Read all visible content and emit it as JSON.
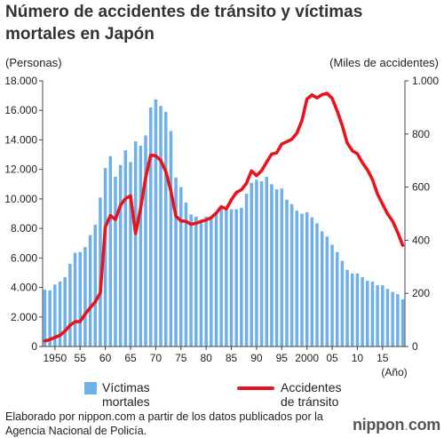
{
  "page": {
    "title": "Número de accidentes de tránsito y víctimas mortales en Japón",
    "unit_left": "(Personas)",
    "unit_right": "(Miles de accidentes)",
    "source": "Elaborado por nippon.com a partir de los datos publicados por la Agencia Nacional de Policía.",
    "brand_name": "nippon",
    "brand_dot": ".",
    "brand_domain": "com"
  },
  "colors": {
    "bars": "#6fb0e8",
    "line": "#e8141c",
    "axis": "#444444",
    "grid": "#cccccc"
  },
  "chart_data": {
    "type": "bar",
    "x": [
      1948,
      1949,
      1950,
      1951,
      1952,
      1953,
      1954,
      1955,
      1956,
      1957,
      1958,
      1959,
      1960,
      1961,
      1962,
      1963,
      1964,
      1965,
      1966,
      1967,
      1968,
      1969,
      1970,
      1971,
      1972,
      1973,
      1974,
      1975,
      1976,
      1977,
      1978,
      1979,
      1980,
      1981,
      1982,
      1983,
      1984,
      1985,
      1986,
      1987,
      1988,
      1989,
      1990,
      1991,
      1992,
      1993,
      1994,
      1995,
      1996,
      1997,
      1998,
      1999,
      2000,
      2001,
      2002,
      2003,
      2004,
      2005,
      2006,
      2007,
      2008,
      2009,
      2010,
      2011,
      2012,
      2013,
      2014,
      2015,
      2016,
      2017,
      2018,
      2019
    ],
    "xticks": [
      1950,
      1955,
      1960,
      1965,
      1970,
      1975,
      1980,
      1985,
      1990,
      1995,
      2000,
      2005,
      2010,
      2015
    ],
    "xtick_labels": [
      "1950",
      "55",
      "60",
      "65",
      "70",
      "75",
      "80",
      "85",
      "90",
      "95",
      "2000",
      "05",
      "10",
      "15"
    ],
    "xlabel": "(Año)",
    "series": [
      {
        "name": "Víctimas mortales",
        "type": "bar",
        "axis": "left",
        "values": [
          3850,
          3800,
          4200,
          4400,
          4700,
          5600,
          6350,
          6400,
          6750,
          7550,
          8250,
          10100,
          12100,
          12900,
          11500,
          12300,
          13300,
          12500,
          13900,
          13600,
          14300,
          16200,
          16750,
          16300,
          15900,
          14600,
          11450,
          10800,
          9750,
          8950,
          8800,
          8450,
          8800,
          8700,
          9100,
          9500,
          9300,
          9300,
          9300,
          9400,
          10350,
          11100,
          11300,
          11200,
          11500,
          11000,
          10650,
          10700,
          9950,
          9650,
          9200,
          9000,
          9100,
          8750,
          8350,
          7800,
          7450,
          6900,
          6400,
          5800,
          5200,
          4950,
          4950,
          4700,
          4450,
          4400,
          4150,
          4150,
          3900,
          3700,
          3550,
          3200
        ]
      },
      {
        "name": "Accidentes de tránsito",
        "type": "line",
        "axis": "right",
        "values": [
          21,
          26,
          34,
          42,
          58,
          80,
          93,
          94,
          122,
          146,
          168,
          202,
          450,
          493,
          478,
          531,
          557,
          567,
          425,
          521,
          635,
          720,
          718,
          700,
          659,
          586,
          491,
          473,
          471,
          460,
          464,
          471,
          476,
          485,
          502,
          526,
          518,
          552,
          580,
          590,
          614,
          661,
          643,
          662,
          694,
          724,
          729,
          762,
          771,
          780,
          803,
          850,
          931,
          947,
          936,
          948,
          953,
          934,
          887,
          832,
          766,
          737,
          726,
          692,
          665,
          629,
          574,
          536,
          499,
          472,
          430,
          381
        ]
      }
    ],
    "ylim_left": [
      0,
      18000
    ],
    "yticks_left": [
      0,
      2000,
      4000,
      6000,
      8000,
      10000,
      12000,
      14000,
      16000,
      18000
    ],
    "ytick_labels_left": [
      "0",
      "2.000",
      "4.000",
      "6.000",
      "8.000",
      "10.000",
      "12.000",
      "14.000",
      "16.000",
      "18.000"
    ],
    "ylim_right": [
      0,
      1000
    ],
    "yticks_right": [
      0,
      200,
      400,
      600,
      800,
      1000
    ],
    "ytick_labels_right": [
      "0",
      "200",
      "400",
      "600",
      "800",
      "1.000"
    ],
    "grid": false,
    "legend": "bottom"
  }
}
